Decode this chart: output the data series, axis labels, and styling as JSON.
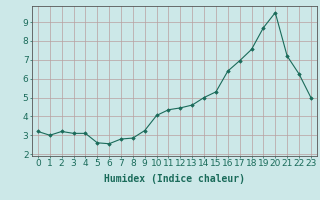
{
  "x": [
    0,
    1,
    2,
    3,
    4,
    5,
    6,
    7,
    8,
    9,
    10,
    11,
    12,
    13,
    14,
    15,
    16,
    17,
    18,
    19,
    20,
    21,
    22,
    23
  ],
  "y": [
    3.2,
    3.0,
    3.2,
    3.1,
    3.1,
    2.6,
    2.55,
    2.8,
    2.85,
    3.25,
    4.05,
    4.35,
    4.45,
    4.6,
    5.0,
    5.3,
    6.4,
    6.95,
    7.55,
    8.7,
    9.5,
    7.2,
    6.25,
    5.0
  ],
  "xlabel": "Humidex (Indice chaleur)",
  "ylim": [
    1.9,
    9.85
  ],
  "xlim": [
    -0.5,
    23.5
  ],
  "yticks": [
    2,
    3,
    4,
    5,
    6,
    7,
    8,
    9
  ],
  "xticks": [
    0,
    1,
    2,
    3,
    4,
    5,
    6,
    7,
    8,
    9,
    10,
    11,
    12,
    13,
    14,
    15,
    16,
    17,
    18,
    19,
    20,
    21,
    22,
    23
  ],
  "line_color": "#1a6b5a",
  "marker": "D",
  "marker_size": 1.8,
  "bg_color": "#cce8e8",
  "grid_color": "#b8a0a0",
  "axis_color": "#555555",
  "xlabel_fontsize": 7,
  "tick_fontsize": 6.5
}
